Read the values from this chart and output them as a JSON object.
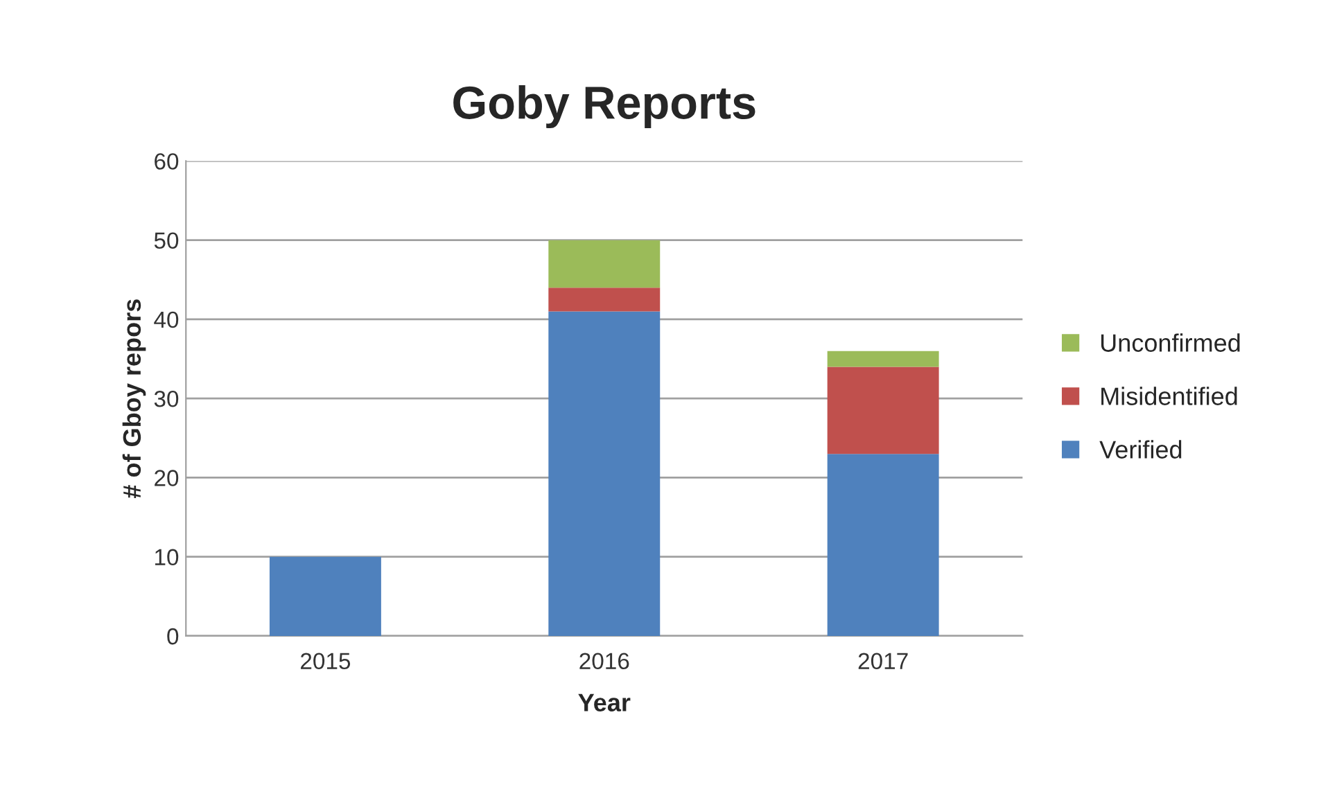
{
  "chart_data": {
    "type": "bar",
    "title": "Goby Reports",
    "xlabel": "Year",
    "ylabel": "# of Gboy repors",
    "categories": [
      "2015",
      "2016",
      "2017"
    ],
    "stacked": true,
    "series": [
      {
        "name": "Verified",
        "color": "#4f81bd",
        "values": [
          10,
          41,
          23
        ]
      },
      {
        "name": "Misidentified",
        "color": "#c0504d",
        "values": [
          null,
          3,
          11
        ]
      },
      {
        "name": "Unconfirmed",
        "color": "#9bbb59",
        "values": [
          null,
          6,
          2
        ]
      }
    ],
    "ylim": [
      0,
      60
    ],
    "yticks": [
      0,
      10,
      20,
      30,
      40,
      50,
      60
    ],
    "grid": "y",
    "legend": "right"
  }
}
